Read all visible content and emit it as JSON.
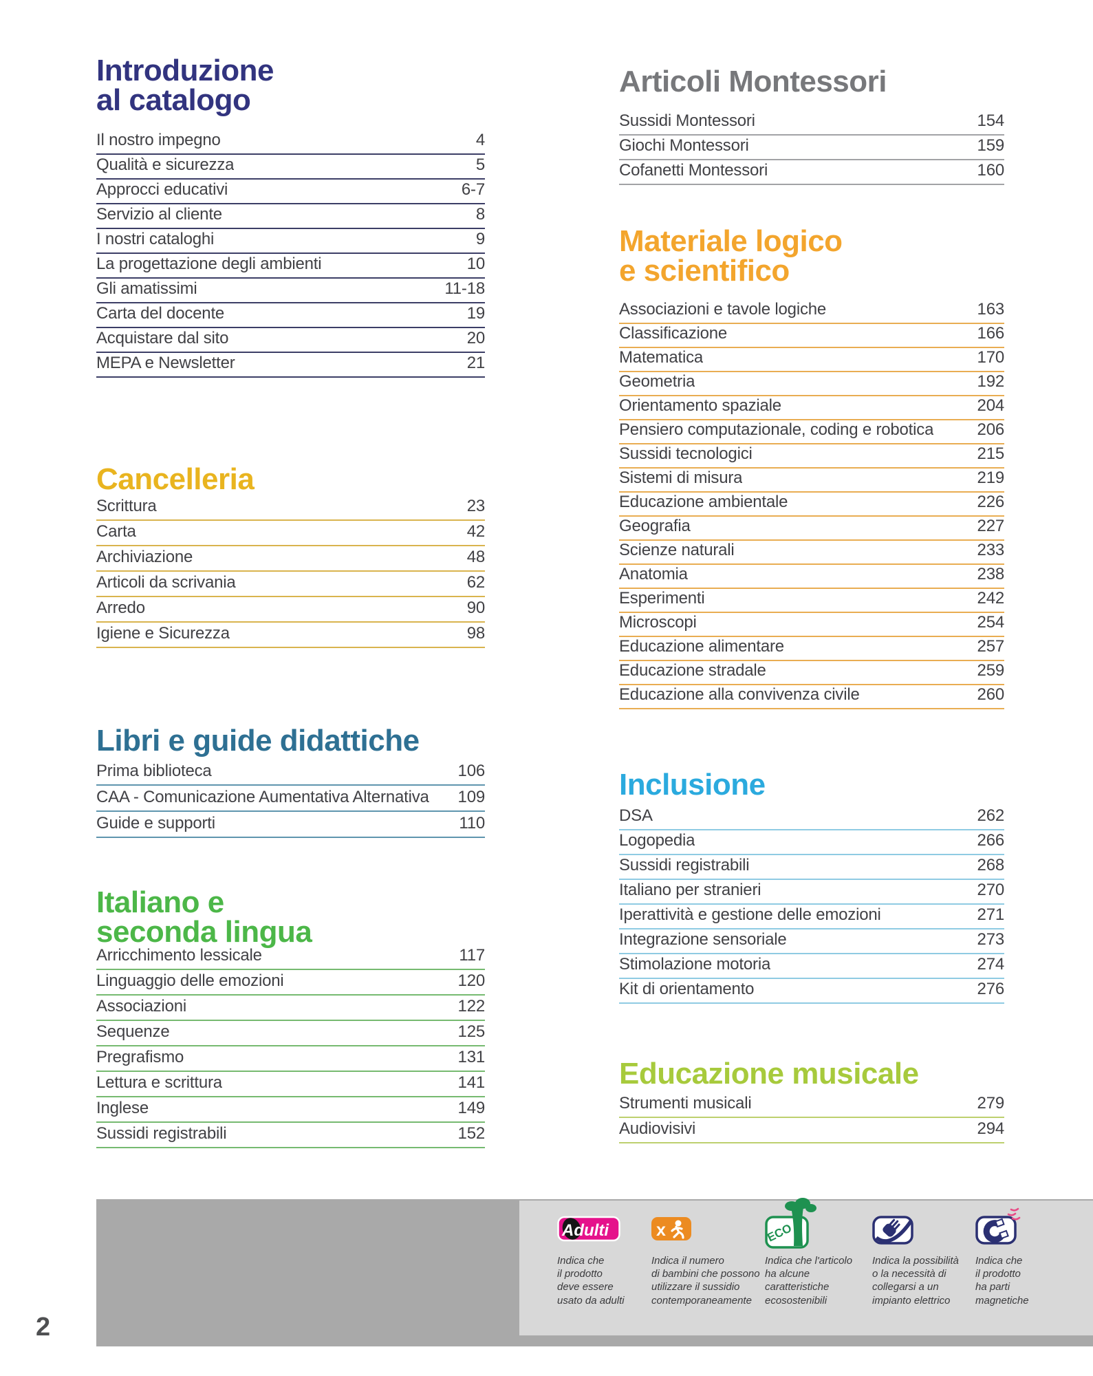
{
  "page_number": "2",
  "columns": [
    {
      "side": "left",
      "sections": [
        {
          "id": "intro",
          "title_lines": [
            "Introduzione",
            "al catalogo"
          ],
          "title_color": "#32347f",
          "rule_color": "#3c3e66",
          "items": [
            {
              "label": "Il nostro impegno",
              "page": "4"
            },
            {
              "label": "Qualità e sicurezza",
              "page": "5"
            },
            {
              "label": "Approcci educativi",
              "page": "6-7"
            },
            {
              "label": "Servizio al cliente",
              "page": "8"
            },
            {
              "label": "I nostri cataloghi",
              "page": "9"
            },
            {
              "label": "La progettazione degli ambienti",
              "page": "10"
            },
            {
              "label": "Gli amatissimi",
              "page": "11-18"
            },
            {
              "label": "Carta del docente",
              "page": "19"
            },
            {
              "label": "Acquistare dal sito",
              "page": "20"
            },
            {
              "label": "MEPA e Newsletter",
              "page": "21"
            }
          ]
        },
        {
          "id": "cancelleria",
          "title_lines": [
            "Cancelleria"
          ],
          "title_color": "#e9b41f",
          "rule_color": "#d9b44e",
          "items": [
            {
              "label": "Scrittura",
              "page": "23"
            },
            {
              "label": "Carta",
              "page": "42"
            },
            {
              "label": "Archiviazione",
              "page": "48"
            },
            {
              "label": "Articoli da scrivania",
              "page": "62"
            },
            {
              "label": "Arredo",
              "page": "90"
            },
            {
              "label": "Igiene e Sicurezza",
              "page": "98"
            }
          ]
        },
        {
          "id": "libri",
          "title_lines": [
            "Libri e guide didattiche"
          ],
          "title_color": "#2e7093",
          "rule_color": "#5e95ae",
          "items": [
            {
              "label": "Prima biblioteca",
              "page": "106"
            },
            {
              "label": "CAA - Comunicazione Aumentativa Alternativa",
              "page": "109"
            },
            {
              "label": "Guide e supporti",
              "page": "110"
            }
          ]
        },
        {
          "id": "italiano",
          "title_lines": [
            "Italiano e",
            "seconda lingua"
          ],
          "title_color": "#4cb748",
          "rule_color": "#76ba70",
          "items": [
            {
              "label": "Arricchimento lessicale",
              "page": "117"
            },
            {
              "label": "Linguaggio delle emozioni",
              "page": "120"
            },
            {
              "label": "Associazioni",
              "page": "122"
            },
            {
              "label": "Sequenze",
              "page": "125"
            },
            {
              "label": "Pregrafismo",
              "page": "131"
            },
            {
              "label": "Lettura e scrittura",
              "page": "141"
            },
            {
              "label": "Inglese",
              "page": "149"
            },
            {
              "label": "Sussidi registrabili",
              "page": "152"
            }
          ]
        }
      ]
    },
    {
      "side": "right",
      "sections": [
        {
          "id": "montessori",
          "title_lines": [
            "Articoli Montessori"
          ],
          "title_color": "#77787b",
          "rule_color": "#a2a3a6",
          "items": [
            {
              "label": "Sussidi Montessori",
              "page": "154"
            },
            {
              "label": "Giochi Montessori",
              "page": "159"
            },
            {
              "label": "Cofanetti Montessori",
              "page": "160"
            }
          ]
        },
        {
          "id": "materiale",
          "title_lines": [
            "Materiale logico",
            "e scientifico"
          ],
          "title_color": "#f3a52d",
          "rule_color": "#e9ad52",
          "items": [
            {
              "label": "Associazioni e tavole logiche",
              "page": "163"
            },
            {
              "label": "Classificazione",
              "page": "166"
            },
            {
              "label": "Matematica",
              "page": "170"
            },
            {
              "label": "Geometria",
              "page": "192"
            },
            {
              "label": "Orientamento spaziale",
              "page": "204"
            },
            {
              "label": "Pensiero computazionale, coding e robotica",
              "page": "206"
            },
            {
              "label": "Sussidi tecnologici",
              "page": "215"
            },
            {
              "label": "Sistemi di misura",
              "page": "219"
            },
            {
              "label": "Educazione ambientale",
              "page": "226"
            },
            {
              "label": "Geografia",
              "page": "227"
            },
            {
              "label": "Scienze naturali",
              "page": "233"
            },
            {
              "label": "Anatomia",
              "page": "238"
            },
            {
              "label": "Esperimenti",
              "page": "242"
            },
            {
              "label": "Microscopi",
              "page": "254"
            },
            {
              "label": "Educazione alimentare",
              "page": "257"
            },
            {
              "label": "Educazione stradale",
              "page": "259"
            },
            {
              "label": "Educazione alla convivenza civile",
              "page": "260"
            }
          ]
        },
        {
          "id": "inclusione",
          "title_lines": [
            "Inclusione"
          ],
          "title_color": "#2baade",
          "rule_color": "#8fcbe3",
          "items": [
            {
              "label": "DSA",
              "page": "262"
            },
            {
              "label": "Logopedia",
              "page": "266"
            },
            {
              "label": "Sussidi registrabili",
              "page": "268"
            },
            {
              "label": "Italiano per stranieri",
              "page": "270"
            },
            {
              "label": "Iperattività e gestione delle emozioni",
              "page": "271"
            },
            {
              "label": "Integrazione sensoriale",
              "page": "273"
            },
            {
              "label": "Stimolazione motoria",
              "page": "274"
            },
            {
              "label": "Kit di orientamento",
              "page": "276"
            }
          ]
        },
        {
          "id": "musicale",
          "title_lines": [
            "Educazione musicale"
          ],
          "title_color": "#a7ca3c",
          "rule_color": "#bdd06e",
          "items": [
            {
              "label": "Strumenti musicali",
              "page": "279"
            },
            {
              "label": "Audiovisivi",
              "page": "294"
            }
          ]
        }
      ]
    }
  ],
  "legend": {
    "items": [
      {
        "icon": "adulti-badge",
        "badge_label": "Adulti",
        "lines": [
          "Indica che",
          "il prodotto",
          "deve essere",
          "usato da adulti"
        ]
      },
      {
        "icon": "children-count-badge",
        "badge_label": "x",
        "lines": [
          "Indica il numero",
          "di bambini che possono",
          "utilizzare il sussidio",
          "contemporaneamente"
        ]
      },
      {
        "icon": "eco-badge",
        "badge_label": "ECO",
        "lines": [
          "Indica che l'articolo",
          "ha alcune",
          "caratteristiche",
          "ecosostenibili"
        ]
      },
      {
        "icon": "electric-plug-badge",
        "badge_label": "",
        "lines": [
          "Indica la possibilità",
          "o la necessità di",
          "collegarsi a un",
          "impianto elettrico"
        ]
      },
      {
        "icon": "magnet-badge",
        "badge_label": "",
        "lines": [
          "Indica che",
          "il prodotto",
          "ha parti",
          "magnetiche"
        ]
      }
    ]
  },
  "colors": {
    "navy_badge": "#2b3072",
    "adulti_pink": "#e5128b",
    "children_orange": "#ec8b21",
    "eco_green": "#1e9150",
    "magnet_field_pink": "#e84b85",
    "footer_bar_gray": "#a9a9a9",
    "legend_panel_gray": "#d8d8d8",
    "item_text": "#414145"
  }
}
